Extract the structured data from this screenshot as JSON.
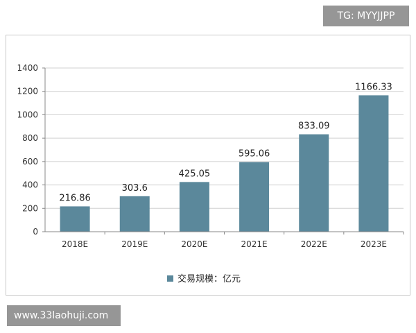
{
  "watermarks": {
    "top_right": "TG: MYYJJPP",
    "bottom_left": "www.33laohuji.com"
  },
  "chart_data": {
    "type": "bar",
    "categories": [
      "2018E",
      "2019E",
      "2020E",
      "2021E",
      "2022E",
      "2023E"
    ],
    "series": [
      {
        "name": "交易规模：亿元",
        "values": [
          216.86,
          303.6,
          425.05,
          595.06,
          833.09,
          1166.33
        ],
        "labels": [
          "216.86",
          "303.6",
          "425.05",
          "595.06",
          "833.09",
          "1166.33"
        ],
        "color": "#5b889b"
      }
    ],
    "yticks": [
      "0",
      "200",
      "400",
      "600",
      "800",
      "1000",
      "1200",
      "1400"
    ],
    "ylim": [
      0,
      1400
    ],
    "legend_position": "bottom-left",
    "grid": true,
    "gridline_color": "#d0d0d0"
  }
}
